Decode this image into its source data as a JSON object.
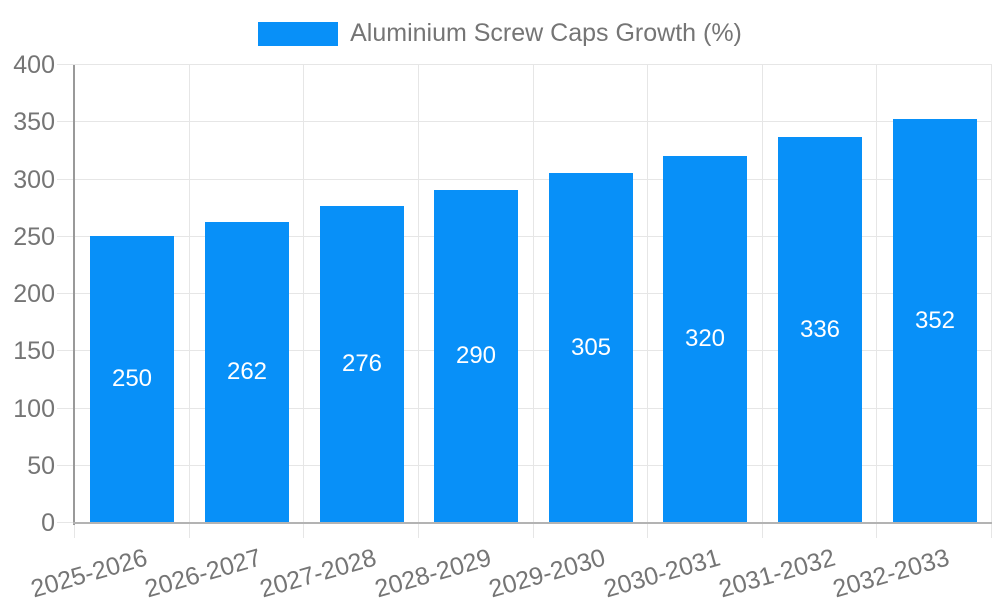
{
  "chart_data": {
    "type": "bar",
    "legend": "Aluminium Screw Caps Growth (%)",
    "categories": [
      "2025-2026",
      "2026-2027",
      "2027-2028",
      "2028-2029",
      "2029-2030",
      "2030-2031",
      "2031-2032",
      "2032-2033"
    ],
    "series": [
      {
        "name": "Aluminium Screw Caps Growth (%)",
        "values": [
          250,
          262,
          276,
          290,
          305,
          320,
          336,
          352
        ]
      }
    ],
    "title": "",
    "xlabel": "",
    "ylabel": "",
    "ylim": [
      0,
      400
    ],
    "yticks": [
      0,
      50,
      100,
      150,
      200,
      250,
      300,
      350,
      400
    ],
    "grid": true,
    "legend_position": "top",
    "bar_value_labels_visible": true,
    "colors": {
      "bar": "#0890f8",
      "bar_label": "#ffffff",
      "axis_text": "#757575",
      "grid": "#e6e6e6",
      "y_axis_line": "#999999",
      "x_axis_line": "#b3b3b3",
      "background": "#ffffff"
    }
  }
}
